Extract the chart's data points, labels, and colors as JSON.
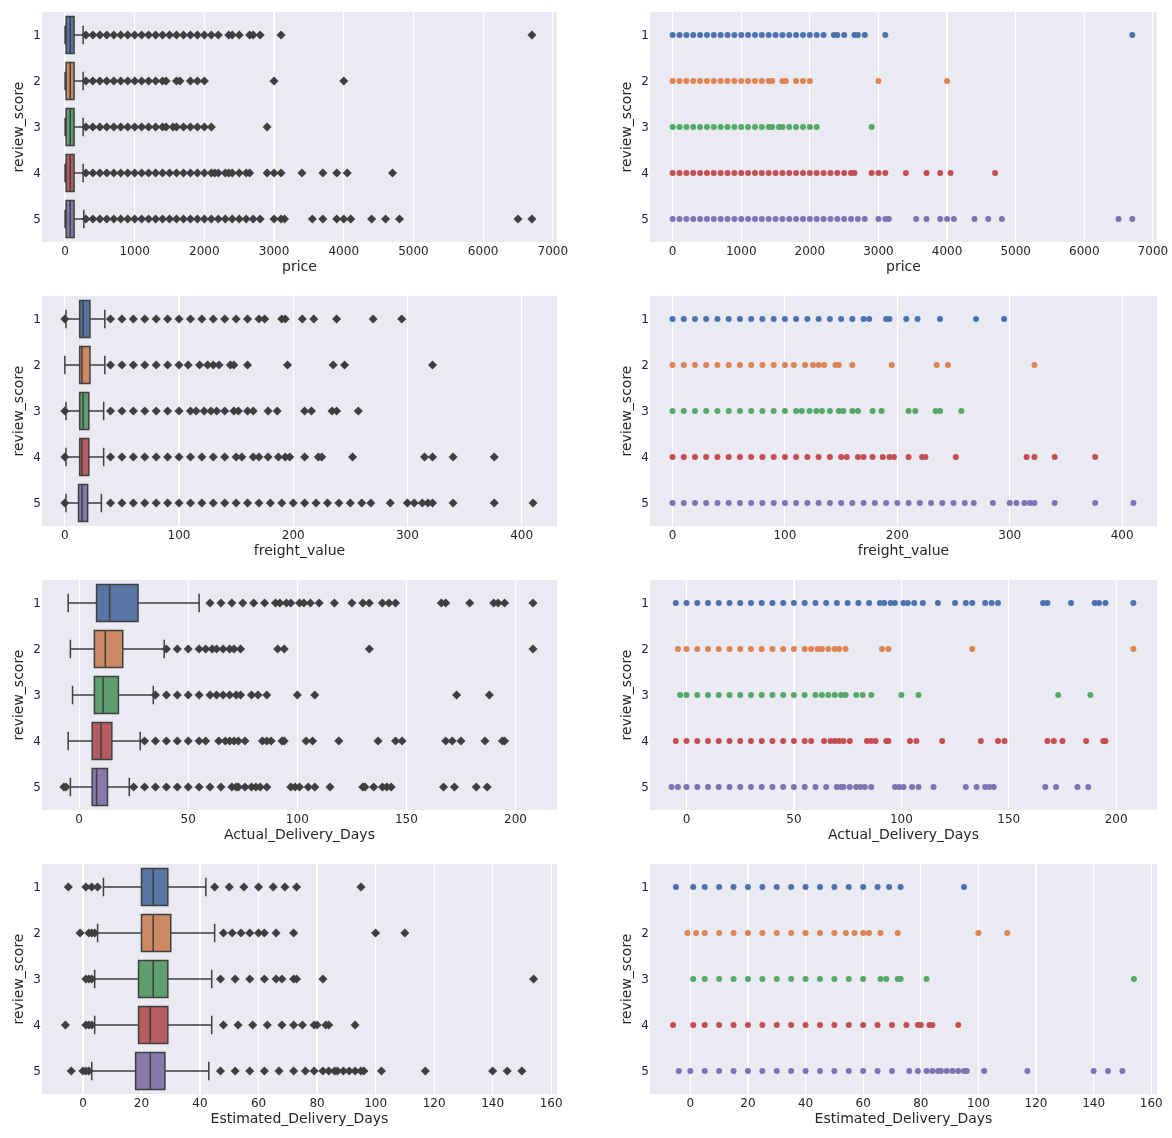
{
  "chart_data": [
    {
      "type": "box",
      "orientation": "horizontal",
      "categories": [
        "1",
        "2",
        "3",
        "4",
        "5"
      ],
      "xlabel": "price",
      "ylabel": "review_score",
      "xlim": [
        -330,
        7060
      ],
      "xticks": [
        0,
        1000,
        2000,
        3000,
        4000,
        5000,
        6000,
        7000
      ],
      "grid": "x",
      "marker": "diamond",
      "colors": [
        "#5975a4",
        "#cc8963",
        "#5f9e6e",
        "#b55d60",
        "#857aab"
      ],
      "boxes": [
        {
          "low": 1,
          "q1": 16,
          "median": 75,
          "q3": 130,
          "high": 260,
          "outliers": [
            300,
            400,
            500,
            600,
            700,
            800,
            900,
            1000,
            1100,
            1200,
            1300,
            1400,
            1500,
            1600,
            1700,
            1800,
            1900,
            2000,
            2100,
            2200,
            2350,
            2400,
            2500,
            2650,
            2700,
            2800,
            3100,
            6700
          ]
        },
        {
          "low": 1,
          "q1": 16,
          "median": 75,
          "q3": 130,
          "high": 260,
          "outliers": [
            300,
            400,
            500,
            600,
            700,
            800,
            900,
            1000,
            1100,
            1200,
            1300,
            1400,
            1450,
            1600,
            1650,
            1800,
            1900,
            2000,
            3000,
            4000
          ]
        },
        {
          "low": 1,
          "q1": 16,
          "median": 75,
          "q3": 130,
          "high": 260,
          "outliers": [
            300,
            400,
            500,
            600,
            700,
            800,
            900,
            1000,
            1100,
            1200,
            1300,
            1400,
            1450,
            1550,
            1600,
            1700,
            1800,
            1900,
            2000,
            2100,
            2900
          ]
        },
        {
          "low": 1,
          "q1": 16,
          "median": 75,
          "q3": 130,
          "high": 260,
          "outliers": [
            300,
            400,
            500,
            600,
            700,
            800,
            900,
            1000,
            1100,
            1200,
            1300,
            1400,
            1500,
            1600,
            1700,
            1800,
            1900,
            2000,
            2100,
            2150,
            2200,
            2300,
            2350,
            2400,
            2500,
            2600,
            2650,
            2900,
            3000,
            3100,
            3400,
            3700,
            3900,
            4050,
            4700
          ]
        },
        {
          "low": 1,
          "q1": 16,
          "median": 75,
          "q3": 130,
          "high": 270,
          "outliers": [
            300,
            400,
            500,
            600,
            700,
            800,
            900,
            1000,
            1100,
            1200,
            1300,
            1400,
            1500,
            1600,
            1700,
            1800,
            1900,
            2000,
            2100,
            2200,
            2300,
            2400,
            2500,
            2600,
            2700,
            2800,
            3000,
            3100,
            3150,
            3550,
            3700,
            3900,
            4000,
            4100,
            4400,
            4600,
            4800,
            6500,
            6700
          ]
        }
      ]
    },
    {
      "type": "scatter",
      "orientation": "horizontal",
      "categories": [
        "1",
        "2",
        "3",
        "4",
        "5"
      ],
      "xlabel": "price",
      "ylabel": "review_score",
      "xlim": [
        -330,
        7060
      ],
      "xticks": [
        0,
        1000,
        2000,
        3000,
        4000,
        5000,
        6000,
        7000
      ],
      "grid": "x",
      "marker": "circle",
      "series": [
        {
          "color": "#4c72b0",
          "x": [
            "1",
            "1",
            "1",
            "1",
            "1",
            "1",
            "1",
            "1",
            "1",
            "1",
            "1",
            "1",
            "1",
            "1",
            "1",
            "1",
            "1",
            "1",
            "1",
            "1",
            "1",
            "1",
            "1",
            "1",
            "1",
            "1",
            "1",
            "1",
            "1",
            "1",
            "1"
          ],
          "values": [
            0,
            100,
            200,
            300,
            400,
            500,
            600,
            700,
            800,
            900,
            1000,
            1100,
            1200,
            1300,
            1400,
            1500,
            1600,
            1700,
            1800,
            1900,
            2000,
            2100,
            2200,
            2350,
            2400,
            2500,
            2650,
            2700,
            2800,
            3100,
            6700
          ]
        },
        {
          "color": "#dd8452",
          "x": [
            "2",
            "2",
            "2",
            "2",
            "2",
            "2",
            "2",
            "2",
            "2",
            "2",
            "2",
            "2",
            "2",
            "2",
            "2",
            "2",
            "2",
            "2",
            "2",
            "2",
            "2",
            "2",
            "2"
          ],
          "values": [
            0,
            100,
            200,
            300,
            400,
            500,
            600,
            700,
            800,
            900,
            1000,
            1100,
            1200,
            1300,
            1400,
            1450,
            1600,
            1650,
            1800,
            1900,
            2000,
            3000,
            4000
          ]
        },
        {
          "color": "#55a868",
          "x": [
            "3",
            "3",
            "3",
            "3",
            "3",
            "3",
            "3",
            "3",
            "3",
            "3",
            "3",
            "3",
            "3",
            "3",
            "3",
            "3",
            "3",
            "3",
            "3",
            "3",
            "3",
            "3",
            "3",
            "3"
          ],
          "values": [
            0,
            100,
            200,
            300,
            400,
            500,
            600,
            700,
            800,
            900,
            1000,
            1100,
            1200,
            1300,
            1400,
            1450,
            1550,
            1600,
            1700,
            1800,
            1900,
            2000,
            2100,
            2900
          ]
        },
        {
          "color": "#c44e52",
          "x": [
            "4",
            "4",
            "4",
            "4",
            "4",
            "4",
            "4",
            "4",
            "4",
            "4",
            "4",
            "4",
            "4",
            "4",
            "4",
            "4",
            "4",
            "4",
            "4",
            "4",
            "4",
            "4",
            "4",
            "4",
            "4",
            "4",
            "4",
            "4",
            "4",
            "4",
            "4",
            "4",
            "4",
            "4",
            "4",
            "4"
          ],
          "values": [
            0,
            100,
            200,
            300,
            400,
            500,
            600,
            700,
            800,
            900,
            1000,
            1100,
            1200,
            1300,
            1400,
            1500,
            1600,
            1700,
            1800,
            1900,
            2000,
            2100,
            2200,
            2300,
            2400,
            2500,
            2600,
            2650,
            2900,
            3000,
            3100,
            3400,
            3700,
            3900,
            4050,
            4700
          ]
        },
        {
          "color": "#8172b3",
          "x": [
            "5",
            "5",
            "5",
            "5",
            "5",
            "5",
            "5",
            "5",
            "5",
            "5",
            "5",
            "5",
            "5",
            "5",
            "5",
            "5",
            "5",
            "5",
            "5",
            "5",
            "5",
            "5",
            "5",
            "5",
            "5",
            "5",
            "5",
            "5",
            "5",
            "5",
            "5",
            "5",
            "5",
            "5",
            "5",
            "5",
            "5",
            "5",
            "5",
            "5",
            "5",
            "5"
          ],
          "values": [
            0,
            100,
            200,
            300,
            400,
            500,
            600,
            700,
            800,
            900,
            1000,
            1100,
            1200,
            1300,
            1400,
            1500,
            1600,
            1700,
            1800,
            1900,
            2000,
            2100,
            2200,
            2300,
            2400,
            2500,
            2600,
            2700,
            2800,
            3000,
            3100,
            3150,
            3550,
            3700,
            3900,
            4000,
            4100,
            4400,
            4600,
            4800,
            6500,
            6700
          ]
        }
      ]
    },
    {
      "type": "box",
      "orientation": "horizontal",
      "categories": [
        "1",
        "2",
        "3",
        "4",
        "5"
      ],
      "xlabel": "freight_value",
      "ylabel": "review_score",
      "xlim": [
        -20,
        431
      ],
      "xticks": [
        0,
        100,
        200,
        300,
        400
      ],
      "grid": "x",
      "marker": "diamond",
      "colors": [
        "#5975a4",
        "#cc8963",
        "#5f9e6e",
        "#b55d60",
        "#857aab"
      ],
      "boxes": [
        {
          "low": 1,
          "q1": 13,
          "median": 16,
          "q3": 22,
          "high": 35,
          "outliers": [
            0,
            40,
            50,
            60,
            70,
            80,
            90,
            100,
            110,
            120,
            130,
            140,
            150,
            160,
            170,
            175,
            190,
            193,
            208,
            218,
            238,
            270,
            295
          ]
        },
        {
          "low": 0,
          "q1": 13,
          "median": 15,
          "q3": 22,
          "high": 35,
          "outliers": [
            40,
            50,
            60,
            70,
            80,
            90,
            100,
            108,
            118,
            125,
            130,
            135,
            145,
            148,
            160,
            195,
            235,
            245,
            322
          ]
        },
        {
          "low": 1,
          "q1": 13,
          "median": 16,
          "q3": 21,
          "high": 34,
          "outliers": [
            0,
            40,
            50,
            60,
            70,
            80,
            90,
            100,
            110,
            115,
            122,
            128,
            133,
            140,
            148,
            152,
            160,
            165,
            178,
            186,
            210,
            216,
            234,
            238,
            257
          ]
        },
        {
          "low": 1,
          "q1": 13,
          "median": 15,
          "q3": 21,
          "high": 34,
          "outliers": [
            0,
            40,
            50,
            60,
            70,
            80,
            90,
            100,
            110,
            120,
            130,
            140,
            150,
            155,
            165,
            170,
            178,
            187,
            193,
            197,
            210,
            222,
            225,
            252,
            315,
            322,
            340,
            376
          ]
        },
        {
          "low": 1,
          "q1": 12,
          "median": 15,
          "q3": 20,
          "high": 32,
          "outliers": [
            0,
            40,
            50,
            60,
            70,
            80,
            90,
            100,
            110,
            120,
            130,
            140,
            150,
            160,
            170,
            180,
            190,
            200,
            210,
            220,
            230,
            240,
            250,
            260,
            268,
            285,
            300,
            306,
            313,
            318,
            322,
            340,
            376,
            410
          ]
        }
      ]
    },
    {
      "type": "scatter",
      "orientation": "horizontal",
      "categories": [
        "1",
        "2",
        "3",
        "4",
        "5"
      ],
      "xlabel": "freight_value",
      "ylabel": "review_score",
      "xlim": [
        -20,
        431
      ],
      "xticks": [
        0,
        100,
        200,
        300,
        400
      ],
      "grid": "x",
      "marker": "circle",
      "series": [
        {
          "color": "#4c72b0",
          "x": [
            "1",
            "1",
            "1",
            "1",
            "1",
            "1",
            "1",
            "1",
            "1",
            "1",
            "1",
            "1",
            "1",
            "1",
            "1",
            "1",
            "1",
            "1",
            "1",
            "1",
            "1",
            "1",
            "1",
            "1",
            "1",
            "1"
          ],
          "values": [
            0,
            10,
            20,
            30,
            40,
            50,
            60,
            70,
            80,
            90,
            100,
            110,
            120,
            130,
            140,
            150,
            160,
            170,
            175,
            190,
            193,
            208,
            218,
            238,
            270,
            295
          ]
        },
        {
          "color": "#dd8452",
          "x": [
            "2",
            "2",
            "2",
            "2",
            "2",
            "2",
            "2",
            "2",
            "2",
            "2",
            "2",
            "2",
            "2",
            "2",
            "2",
            "2",
            "2",
            "2",
            "2",
            "2",
            "2",
            "2",
            "2"
          ],
          "values": [
            0,
            10,
            20,
            30,
            40,
            50,
            60,
            70,
            80,
            90,
            100,
            108,
            118,
            125,
            130,
            135,
            145,
            148,
            160,
            195,
            235,
            245,
            322
          ]
        },
        {
          "color": "#55a868",
          "x": [
            "3",
            "3",
            "3",
            "3",
            "3",
            "3",
            "3",
            "3",
            "3",
            "3",
            "3",
            "3",
            "3",
            "3",
            "3",
            "3",
            "3",
            "3",
            "3",
            "3",
            "3",
            "3",
            "3",
            "3",
            "3",
            "3",
            "3",
            "3"
          ],
          "values": [
            0,
            10,
            20,
            30,
            40,
            50,
            60,
            70,
            80,
            90,
            100,
            110,
            115,
            122,
            128,
            133,
            140,
            148,
            152,
            160,
            165,
            178,
            186,
            210,
            216,
            234,
            238,
            257
          ]
        },
        {
          "color": "#c44e52",
          "x": [
            "4",
            "4",
            "4",
            "4",
            "4",
            "4",
            "4",
            "4",
            "4",
            "4",
            "4",
            "4",
            "4",
            "4",
            "4",
            "4",
            "4",
            "4",
            "4",
            "4",
            "4",
            "4",
            "4",
            "4",
            "4",
            "4",
            "4",
            "4",
            "4",
            "4",
            "4"
          ],
          "values": [
            0,
            10,
            20,
            30,
            40,
            50,
            60,
            70,
            80,
            90,
            100,
            110,
            120,
            130,
            140,
            150,
            155,
            165,
            170,
            178,
            187,
            193,
            197,
            210,
            222,
            225,
            252,
            315,
            322,
            340,
            376
          ]
        },
        {
          "color": "#8172b3",
          "x": [
            "5",
            "5",
            "5",
            "5",
            "5",
            "5",
            "5",
            "5",
            "5",
            "5",
            "5",
            "5",
            "5",
            "5",
            "5",
            "5",
            "5",
            "5",
            "5",
            "5",
            "5",
            "5",
            "5",
            "5",
            "5",
            "5",
            "5",
            "5",
            "5",
            "5",
            "5",
            "5",
            "5",
            "5",
            "5",
            "5",
            "5"
          ],
          "values": [
            0,
            10,
            20,
            30,
            40,
            50,
            60,
            70,
            80,
            90,
            100,
            110,
            120,
            130,
            140,
            150,
            160,
            170,
            180,
            190,
            200,
            210,
            220,
            230,
            240,
            250,
            260,
            268,
            285,
            300,
            306,
            313,
            318,
            322,
            340,
            376,
            410
          ]
        }
      ]
    },
    {
      "type": "box",
      "orientation": "horizontal",
      "categories": [
        "1",
        "2",
        "3",
        "4",
        "5"
      ],
      "xlabel": "Actual_Delivery_Days",
      "ylabel": "review_score",
      "xlim": [
        -17,
        219
      ],
      "xticks": [
        0,
        50,
        100,
        150,
        200
      ],
      "grid": "x",
      "marker": "diamond",
      "colors": [
        "#5975a4",
        "#cc8963",
        "#5f9e6e",
        "#b55d60",
        "#857aab"
      ],
      "boxes": [
        {
          "low": -5,
          "q1": 8,
          "median": 14,
          "q3": 27,
          "high": 55,
          "outliers": [
            60,
            65,
            70,
            75,
            80,
            85,
            90,
            92,
            95,
            97,
            101,
            103,
            106,
            110,
            117,
            125,
            130,
            133,
            139,
            142,
            145,
            166,
            168,
            179,
            190,
            192,
            195,
            208
          ]
        },
        {
          "low": -4,
          "q1": 7,
          "median": 12,
          "q3": 20,
          "high": 39,
          "outliers": [
            40,
            45,
            50,
            55,
            58,
            61,
            63,
            66,
            69,
            71,
            74,
            91,
            94,
            133,
            208
          ]
        },
        {
          "low": -3,
          "q1": 7,
          "median": 11,
          "q3": 18,
          "high": 34,
          "outliers": [
            35,
            40,
            45,
            50,
            55,
            60,
            63,
            66,
            69,
            72,
            74,
            79,
            82,
            86,
            100,
            108,
            173,
            188
          ]
        },
        {
          "low": -5,
          "q1": 6,
          "median": 10,
          "q3": 15,
          "high": 28,
          "outliers": [
            30,
            35,
            40,
            45,
            50,
            55,
            58,
            64,
            67,
            69,
            71,
            73,
            76,
            84,
            86,
            88,
            93,
            94,
            104,
            107,
            119,
            137,
            145,
            148,
            168,
            171,
            175,
            186,
            194,
            195
          ]
        },
        {
          "low": -4,
          "q1": 6,
          "median": 8,
          "q3": 13,
          "high": 23,
          "outliers": [
            -7,
            -6,
            25,
            30,
            35,
            40,
            45,
            50,
            55,
            60,
            65,
            70,
            72,
            73,
            76,
            79,
            81,
            83,
            86,
            97,
            99,
            101,
            105,
            108,
            115,
            130,
            131,
            135,
            139,
            141,
            143,
            167,
            172,
            182,
            187
          ]
        }
      ]
    },
    {
      "type": "scatter",
      "orientation": "horizontal",
      "categories": [
        "1",
        "2",
        "3",
        "4",
        "5"
      ],
      "xlabel": "Actual_Delivery_Days",
      "ylabel": "review_score",
      "xlim": [
        -17,
        219
      ],
      "xticks": [
        0,
        50,
        100,
        150,
        200
      ],
      "grid": "x",
      "marker": "circle",
      "series": [
        {
          "color": "#4c72b0",
          "x": [
            "1",
            "1",
            "1",
            "1",
            "1",
            "1",
            "1",
            "1",
            "1",
            "1",
            "1",
            "1",
            "1",
            "1",
            "1",
            "1",
            "1",
            "1",
            "1",
            "1",
            "1",
            "1",
            "1",
            "1",
            "1",
            "1",
            "1",
            "1",
            "1",
            "1",
            "1",
            "1",
            "1",
            "1",
            "1",
            "1",
            "1",
            "1",
            "1",
            "1",
            "1"
          ],
          "values": [
            -5,
            0,
            5,
            10,
            15,
            20,
            25,
            30,
            35,
            40,
            45,
            50,
            55,
            60,
            65,
            70,
            75,
            80,
            85,
            90,
            92,
            95,
            97,
            101,
            103,
            106,
            110,
            117,
            125,
            130,
            133,
            139,
            142,
            145,
            166,
            168,
            179,
            190,
            192,
            195,
            208
          ]
        },
        {
          "color": "#dd8452",
          "x": [
            "2",
            "2",
            "2",
            "2",
            "2",
            "2",
            "2",
            "2",
            "2",
            "2",
            "2",
            "2",
            "2",
            "2",
            "2",
            "2",
            "2",
            "2",
            "2",
            "2",
            "2",
            "2",
            "2",
            "2"
          ],
          "values": [
            -4,
            0,
            5,
            10,
            15,
            20,
            25,
            30,
            35,
            40,
            45,
            50,
            55,
            58,
            61,
            63,
            66,
            69,
            71,
            74,
            91,
            94,
            133,
            208
          ]
        },
        {
          "color": "#55a868",
          "x": [
            "3",
            "3",
            "3",
            "3",
            "3",
            "3",
            "3",
            "3",
            "3",
            "3",
            "3",
            "3",
            "3",
            "3",
            "3",
            "3",
            "3",
            "3",
            "3",
            "3",
            "3",
            "3",
            "3",
            "3",
            "3",
            "3"
          ],
          "values": [
            -3,
            0,
            5,
            10,
            15,
            20,
            25,
            30,
            35,
            40,
            45,
            50,
            55,
            60,
            63,
            66,
            69,
            72,
            74,
            79,
            82,
            86,
            100,
            108,
            173,
            188
          ]
        },
        {
          "color": "#c44e52",
          "x": [
            "4",
            "4",
            "4",
            "4",
            "4",
            "4",
            "4",
            "4",
            "4",
            "4",
            "4",
            "4",
            "4",
            "4",
            "4",
            "4",
            "4",
            "4",
            "4",
            "4",
            "4",
            "4",
            "4",
            "4",
            "4",
            "4",
            "4",
            "4",
            "4",
            "4",
            "4",
            "4",
            "4",
            "4",
            "4",
            "4",
            "4"
          ],
          "values": [
            -5,
            0,
            5,
            10,
            15,
            20,
            25,
            30,
            35,
            40,
            45,
            50,
            55,
            58,
            64,
            67,
            69,
            71,
            73,
            76,
            84,
            86,
            88,
            93,
            94,
            104,
            107,
            119,
            137,
            145,
            148,
            168,
            171,
            175,
            186,
            194,
            195
          ]
        },
        {
          "color": "#8172b3",
          "x": [
            "5",
            "5",
            "5",
            "5",
            "5",
            "5",
            "5",
            "5",
            "5",
            "5",
            "5",
            "5",
            "5",
            "5",
            "5",
            "5",
            "5",
            "5",
            "5",
            "5",
            "5",
            "5",
            "5",
            "5",
            "5",
            "5",
            "5",
            "5",
            "5",
            "5",
            "5",
            "5",
            "5",
            "5",
            "5",
            "5",
            "5",
            "5",
            "5"
          ],
          "values": [
            -7,
            -4,
            0,
            5,
            10,
            15,
            20,
            25,
            30,
            35,
            40,
            45,
            50,
            55,
            60,
            65,
            70,
            72,
            73,
            76,
            79,
            81,
            83,
            86,
            97,
            99,
            101,
            105,
            108,
            115,
            130,
            135,
            139,
            141,
            143,
            167,
            172,
            182,
            187
          ]
        }
      ]
    },
    {
      "type": "box",
      "orientation": "horizontal",
      "categories": [
        "1",
        "2",
        "3",
        "4",
        "5"
      ],
      "xlabel": "Estimated_Delivery_Days",
      "ylabel": "review_score",
      "xlim": [
        -14,
        162
      ],
      "xticks": [
        0,
        20,
        40,
        60,
        80,
        100,
        120,
        140,
        160
      ],
      "grid": "x",
      "marker": "diamond",
      "colors": [
        "#5975a4",
        "#cc8963",
        "#5f9e6e",
        "#b55d60",
        "#857aab"
      ],
      "boxes": [
        {
          "low": 7,
          "q1": 20,
          "median": 24,
          "q3": 29,
          "high": 42,
          "outliers": [
            -5,
            1,
            3,
            5,
            45,
            50,
            55,
            60,
            65,
            69,
            73,
            95
          ]
        },
        {
          "low": 5,
          "q1": 20,
          "median": 24,
          "q3": 30,
          "high": 45,
          "outliers": [
            -1,
            2,
            3,
            4,
            48,
            51,
            54,
            57,
            60,
            62,
            66,
            72,
            100,
            110
          ]
        },
        {
          "low": 4,
          "q1": 19,
          "median": 24,
          "q3": 29,
          "high": 44,
          "outliers": [
            1,
            2,
            3,
            47,
            52,
            57,
            62,
            66,
            68,
            72,
            73,
            82,
            154
          ]
        },
        {
          "low": 4,
          "q1": 19,
          "median": 23,
          "q3": 29,
          "high": 44,
          "outliers": [
            -6,
            1,
            2,
            3,
            48,
            53,
            58,
            63,
            68,
            72,
            75,
            79,
            80,
            83,
            84,
            93
          ]
        },
        {
          "low": 3,
          "q1": 18,
          "median": 23,
          "q3": 28,
          "high": 43,
          "outliers": [
            -4,
            0,
            1,
            2,
            47,
            52,
            57,
            62,
            67,
            72,
            76,
            79,
            82,
            84,
            86,
            87,
            89,
            91,
            93,
            95,
            96,
            102,
            117,
            140,
            145,
            150
          ]
        }
      ]
    },
    {
      "type": "scatter",
      "orientation": "horizontal",
      "categories": [
        "1",
        "2",
        "3",
        "4",
        "5"
      ],
      "xlabel": "Estimated_Delivery_Days",
      "ylabel": "review_score",
      "xlim": [
        -14,
        162
      ],
      "xticks": [
        0,
        20,
        40,
        60,
        80,
        100,
        120,
        140,
        160
      ],
      "grid": "x",
      "marker": "circle",
      "series": [
        {
          "color": "#4c72b0",
          "x": [
            "1",
            "1",
            "1",
            "1",
            "1",
            "1",
            "1",
            "1",
            "1",
            "1",
            "1",
            "1",
            "1",
            "1",
            "1",
            "1",
            "1",
            "1"
          ],
          "values": [
            -5,
            1,
            5,
            10,
            15,
            20,
            25,
            30,
            35,
            40,
            45,
            50,
            55,
            60,
            65,
            69,
            73,
            95
          ]
        },
        {
          "color": "#dd8452",
          "x": [
            "2",
            "2",
            "2",
            "2",
            "2",
            "2",
            "2",
            "2",
            "2",
            "2",
            "2",
            "2",
            "2",
            "2",
            "2",
            "2",
            "2",
            "2",
            "2",
            "2"
          ],
          "values": [
            -1,
            2,
            5,
            10,
            15,
            20,
            25,
            30,
            35,
            40,
            45,
            50,
            54,
            57,
            60,
            62,
            66,
            72,
            100,
            110
          ]
        },
        {
          "color": "#55a868",
          "x": [
            "3",
            "3",
            "3",
            "3",
            "3",
            "3",
            "3",
            "3",
            "3",
            "3",
            "3",
            "3",
            "3",
            "3",
            "3",
            "3",
            "3",
            "3",
            "3"
          ],
          "values": [
            1,
            5,
            10,
            15,
            20,
            25,
            30,
            35,
            40,
            45,
            50,
            55,
            60,
            66,
            68,
            72,
            73,
            82,
            154
          ]
        },
        {
          "color": "#c44e52",
          "x": [
            "4",
            "4",
            "4",
            "4",
            "4",
            "4",
            "4",
            "4",
            "4",
            "4",
            "4",
            "4",
            "4",
            "4",
            "4",
            "4",
            "4",
            "4",
            "4",
            "4",
            "4",
            "4"
          ],
          "values": [
            -6,
            1,
            5,
            10,
            15,
            20,
            25,
            30,
            35,
            40,
            45,
            50,
            55,
            60,
            65,
            70,
            75,
            79,
            80,
            83,
            84,
            93
          ]
        },
        {
          "color": "#8172b3",
          "x": [
            "5",
            "5",
            "5",
            "5",
            "5",
            "5",
            "5",
            "5",
            "5",
            "5",
            "5",
            "5",
            "5",
            "5",
            "5",
            "5",
            "5",
            "5",
            "5",
            "5",
            "5",
            "5",
            "5",
            "5",
            "5",
            "5",
            "5",
            "5",
            "5",
            "5",
            "5",
            "5"
          ],
          "values": [
            -4,
            0,
            5,
            10,
            15,
            20,
            25,
            30,
            35,
            40,
            45,
            50,
            55,
            60,
            65,
            70,
            76,
            79,
            82,
            84,
            86,
            87,
            89,
            91,
            93,
            95,
            96,
            102,
            117,
            140,
            145,
            150
          ]
        }
      ]
    }
  ]
}
